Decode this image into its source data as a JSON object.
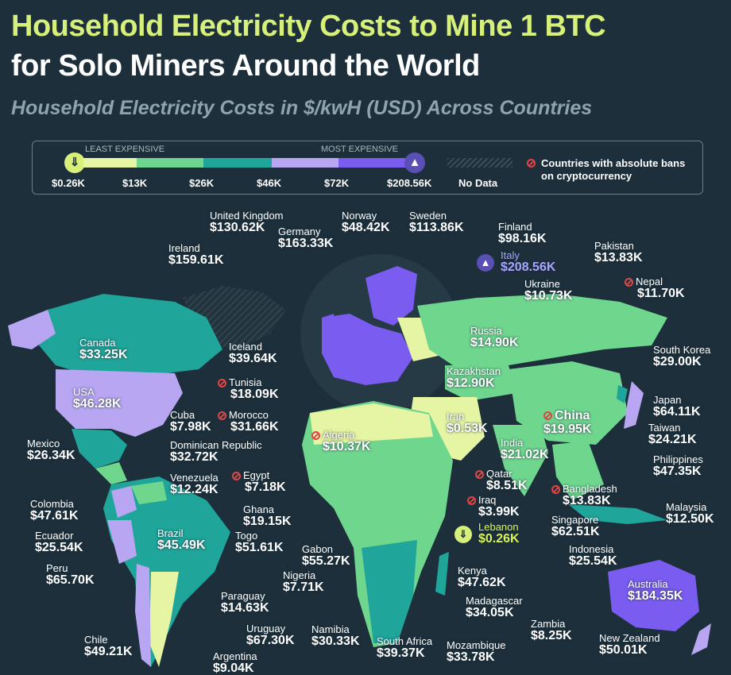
{
  "title_line1": "Household Electricity Costs to Mine 1 BTC",
  "title_line2": "for Solo Miners Around the World",
  "subtitle": "Household Electricity Costs in $/kwH (USD) Across Countries",
  "legend": {
    "least_label": "LEAST EXPENSIVE",
    "most_label": "MOST EXPENSIVE",
    "bins": [
      {
        "value": "$0.26K",
        "color": "#e6f5a3"
      },
      {
        "value": "$13K",
        "color": "#6fd68e"
      },
      {
        "value": "$26K",
        "color": "#1fa59a"
      },
      {
        "value": "$46K",
        "color": "#b8a6f2"
      },
      {
        "value": "$72K",
        "color": "#7b5cf0"
      },
      {
        "value": "$208.56K",
        "color": "#7b5cf0"
      }
    ],
    "no_data_label": "No Data",
    "ban_label": "Countries with absolute bans on cryptocurrency"
  },
  "countries": [
    {
      "name": "United Kingdom",
      "value": "$130.62K"
    },
    {
      "name": "Norway",
      "value": "$48.42K"
    },
    {
      "name": "Sweden",
      "value": "$113.86K"
    },
    {
      "name": "Finland",
      "value": "$98.16K"
    },
    {
      "name": "Germany",
      "value": "$163.33K"
    },
    {
      "name": "Ireland",
      "value": "$159.61K"
    },
    {
      "name": "Italy",
      "value": "$208.56K"
    },
    {
      "name": "Pakistan",
      "value": "$13.83K"
    },
    {
      "name": "Ukraine",
      "value": "$10.73K"
    },
    {
      "name": "Nepal",
      "value": "$11.70K",
      "ban": true
    },
    {
      "name": "Canada",
      "value": "$33.25K"
    },
    {
      "name": "Russia",
      "value": "$14.90K"
    },
    {
      "name": "Iceland",
      "value": "$39.64K"
    },
    {
      "name": "South Korea",
      "value": "$29.00K"
    },
    {
      "name": "Tunisia",
      "value": "$18.09K",
      "ban": true
    },
    {
      "name": "Kazakhstan",
      "value": "$12.90K"
    },
    {
      "name": "USA",
      "value": "$46.28K"
    },
    {
      "name": "Japan",
      "value": "$64.11K"
    },
    {
      "name": "Cuba",
      "value": "$7.98K"
    },
    {
      "name": "Morocco",
      "value": "$31.66K",
      "ban": true
    },
    {
      "name": "Iran",
      "value": "$0.53K"
    },
    {
      "name": "China",
      "value": "$19.95K",
      "ban": true
    },
    {
      "name": "Taiwan",
      "value": "$24.21K"
    },
    {
      "name": "Algeria",
      "value": "$10.37K",
      "ban": true
    },
    {
      "name": "Mexico",
      "value": "$26.34K"
    },
    {
      "name": "Dominican Republic",
      "value": "$32.72K"
    },
    {
      "name": "India",
      "value": "$21.02K"
    },
    {
      "name": "Philippines",
      "value": "$47.35K"
    },
    {
      "name": "Egypt",
      "value": "$7.18K",
      "ban": true
    },
    {
      "name": "Venezuela",
      "value": "$12.24K"
    },
    {
      "name": "Qatar",
      "value": "$8.51K",
      "ban": true
    },
    {
      "name": "Bangladesh",
      "value": "$13.83K",
      "ban": true
    },
    {
      "name": "Colombia",
      "value": "$47.61K"
    },
    {
      "name": "Ghana",
      "value": "$19.15K"
    },
    {
      "name": "Iraq",
      "value": "$3.99K",
      "ban": true
    },
    {
      "name": "Singapore",
      "value": "$62.51K"
    },
    {
      "name": "Malaysia",
      "value": "$12.50K"
    },
    {
      "name": "Ecuador",
      "value": "$25.54K"
    },
    {
      "name": "Brazil",
      "value": "$45.49K"
    },
    {
      "name": "Togo",
      "value": "$51.61K"
    },
    {
      "name": "Lebanon",
      "value": "$0.26K"
    },
    {
      "name": "Gabon",
      "value": "$55.27K"
    },
    {
      "name": "Indonesia",
      "value": "$25.54K"
    },
    {
      "name": "Peru",
      "value": "$65.70K"
    },
    {
      "name": "Nigeria",
      "value": "$7.71K"
    },
    {
      "name": "Kenya",
      "value": "$47.62K"
    },
    {
      "name": "Australia",
      "value": "$184.35K"
    },
    {
      "name": "Paraguay",
      "value": "$14.63K"
    },
    {
      "name": "Madagascar",
      "value": "$34.05K"
    },
    {
      "name": "Zambia",
      "value": "$8.25K"
    },
    {
      "name": "Chile",
      "value": "$49.21K"
    },
    {
      "name": "Uruguay",
      "value": "$67.30K"
    },
    {
      "name": "Namibia",
      "value": "$30.33K"
    },
    {
      "name": "South Africa",
      "value": "$39.37K"
    },
    {
      "name": "Mozambique",
      "value": "$33.78K"
    },
    {
      "name": "New Zealand",
      "value": "$50.01K"
    },
    {
      "name": "Argentina",
      "value": "$9.04K"
    }
  ]
}
